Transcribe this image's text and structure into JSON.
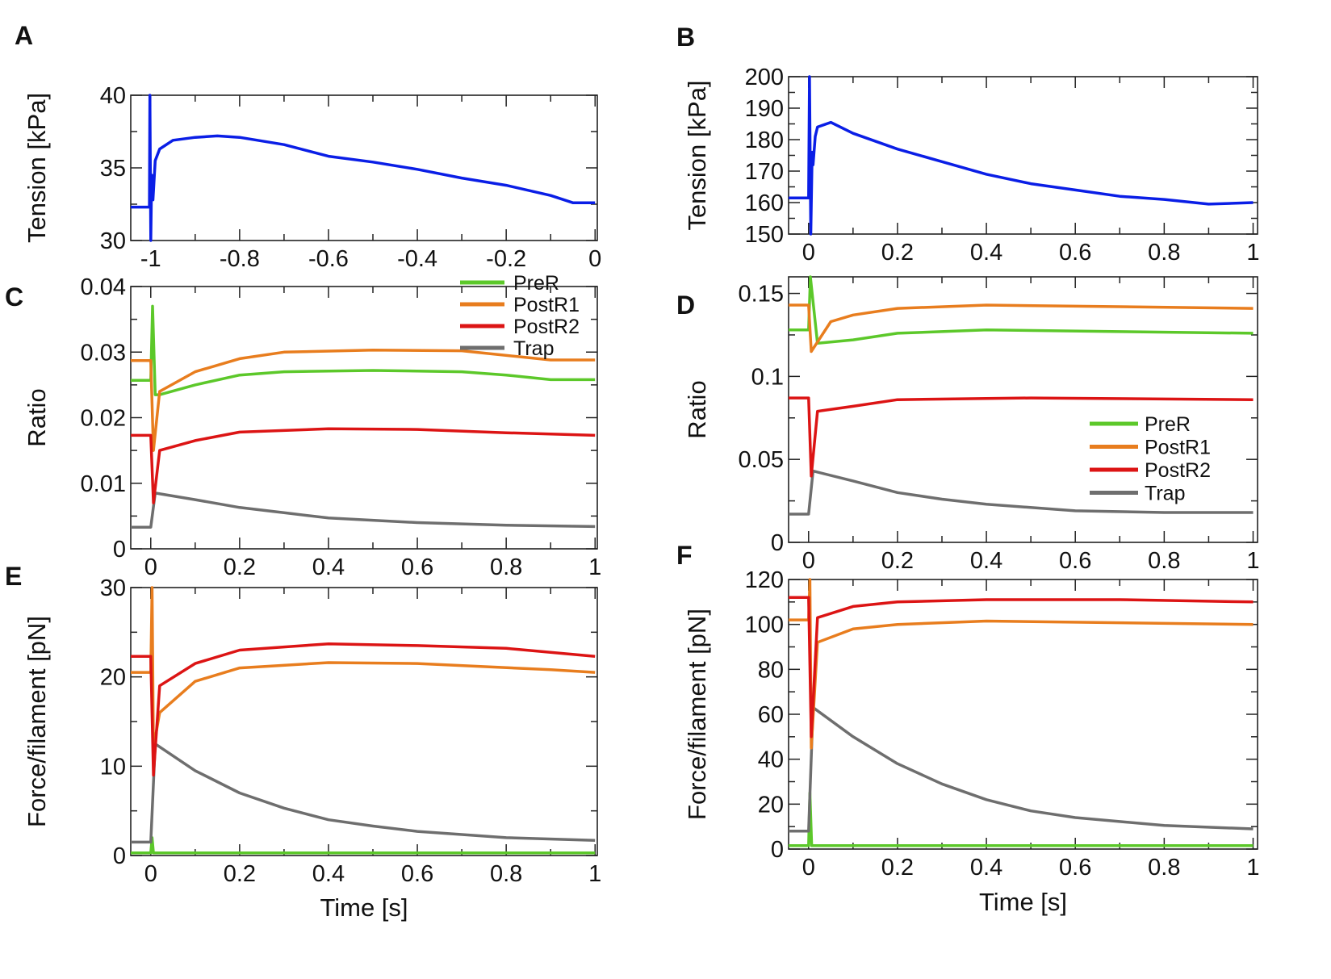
{
  "chart_data": [
    {
      "panel": "A",
      "type": "line",
      "ylabel": "Tension [kPa]",
      "xlabel": "",
      "xlim": [
        -1.045,
        0.005
      ],
      "ylim": [
        30,
        40
      ],
      "xticks": [
        "-1",
        "-0.8",
        "-0.6",
        "-0.4",
        "-0.2",
        "0"
      ],
      "xtick_values": [
        -1,
        -0.8,
        -0.6,
        -0.4,
        -0.2,
        0
      ],
      "yticks": [
        "30",
        "35",
        "40"
      ],
      "ytick_values": [
        30,
        35,
        40
      ],
      "legend": null,
      "series": [
        {
          "name": "Tension",
          "color": "#0a1ee6",
          "x": [
            -1.045,
            -1.003,
            -1.002,
            -1.0,
            -0.998,
            -0.995,
            -0.99,
            -0.98,
            -0.95,
            -0.9,
            -0.85,
            -0.8,
            -0.7,
            -0.6,
            -0.5,
            -0.4,
            -0.3,
            -0.2,
            -0.1,
            -0.05,
            0.0
          ],
          "y": [
            32.3,
            32.3,
            40,
            30,
            34.5,
            32.8,
            35.5,
            36.3,
            36.9,
            37.1,
            37.2,
            37.1,
            36.6,
            35.8,
            35.4,
            34.9,
            34.3,
            33.8,
            33.1,
            32.6,
            32.6
          ]
        }
      ]
    },
    {
      "panel": "B",
      "type": "line",
      "ylabel": "Tension [kPa]",
      "xlabel": "",
      "xlim": [
        -0.045,
        1.01
      ],
      "ylim": [
        150,
        200
      ],
      "xticks": [
        "0",
        "0.2",
        "0.4",
        "0.6",
        "0.8",
        "1"
      ],
      "xtick_values": [
        0,
        0.2,
        0.4,
        0.6,
        0.8,
        1
      ],
      "yticks": [
        "150",
        "160",
        "170",
        "180",
        "190",
        "200"
      ],
      "ytick_values": [
        150,
        160,
        170,
        180,
        190,
        200
      ],
      "legend": null,
      "series": [
        {
          "name": "Tension",
          "color": "#0a1ee6",
          "x": [
            -0.045,
            0.0,
            0.002,
            0.005,
            0.008,
            0.01,
            0.015,
            0.02,
            0.05,
            0.1,
            0.2,
            0.3,
            0.4,
            0.5,
            0.6,
            0.7,
            0.8,
            0.9,
            1.0
          ],
          "y": [
            161.5,
            161.5,
            200,
            150,
            176,
            172,
            181,
            184,
            185.5,
            182,
            177,
            173,
            169,
            166,
            164,
            162,
            161,
            159.5,
            160
          ]
        }
      ]
    },
    {
      "panel": "C",
      "type": "line",
      "ylabel": "Ratio",
      "xlabel": "",
      "xlim": [
        -0.045,
        1.005
      ],
      "ylim": [
        0,
        0.04
      ],
      "xticks": [
        "0",
        "0.2",
        "0.4",
        "0.6",
        "0.8",
        "1"
      ],
      "xtick_values": [
        0,
        0.2,
        0.4,
        0.6,
        0.8,
        1
      ],
      "yticks": [
        "0",
        "0.01",
        "0.02",
        "0.03",
        "0.04"
      ],
      "ytick_values": [
        0,
        0.01,
        0.02,
        0.03,
        0.04
      ],
      "legend": {
        "placement": "top-right",
        "entries": [
          "PreR",
          "PostR1",
          "PostR2",
          "Trap"
        ]
      },
      "series": [
        {
          "name": "Trap",
          "color": "#6e6e6e",
          "x": [
            -0.045,
            0.0,
            0.01,
            0.1,
            0.2,
            0.3,
            0.4,
            0.6,
            0.8,
            1.0
          ],
          "y": [
            0.0033,
            0.0033,
            0.0085,
            0.0075,
            0.0063,
            0.0055,
            0.0047,
            0.004,
            0.0036,
            0.0034
          ]
        },
        {
          "name": "PreR",
          "color": "#5cc82a",
          "x": [
            -0.045,
            0.0,
            0.004,
            0.01,
            0.02,
            0.1,
            0.2,
            0.3,
            0.5,
            0.7,
            0.8,
            0.9,
            1.0
          ],
          "y": [
            0.0257,
            0.0257,
            0.037,
            0.0235,
            0.0235,
            0.025,
            0.0265,
            0.027,
            0.0272,
            0.027,
            0.0265,
            0.0258,
            0.0258
          ]
        },
        {
          "name": "PostR1",
          "color": "#e87d1e",
          "x": [
            -0.045,
            0.0,
            0.006,
            0.02,
            0.1,
            0.2,
            0.3,
            0.5,
            0.7,
            0.9,
            1.0
          ],
          "y": [
            0.0287,
            0.0287,
            0.015,
            0.024,
            0.027,
            0.029,
            0.03,
            0.0303,
            0.0302,
            0.0288,
            0.0288
          ]
        },
        {
          "name": "PostR2",
          "color": "#dc1414",
          "x": [
            -0.045,
            0.0,
            0.006,
            0.02,
            0.1,
            0.2,
            0.4,
            0.6,
            0.8,
            1.0
          ],
          "y": [
            0.0173,
            0.0173,
            0.007,
            0.015,
            0.0165,
            0.0178,
            0.0183,
            0.0182,
            0.0177,
            0.0173
          ]
        }
      ]
    },
    {
      "panel": "D",
      "type": "line",
      "ylabel": "Ratio",
      "xlabel": "",
      "xlim": [
        -0.045,
        1.01
      ],
      "ylim": [
        0,
        0.16
      ],
      "xticks": [
        "0",
        "0.2",
        "0.4",
        "0.6",
        "0.8",
        "1"
      ],
      "xtick_values": [
        0,
        0.2,
        0.4,
        0.6,
        0.8,
        1
      ],
      "yticks": [
        "0",
        "0.05",
        "0.1",
        "0.15"
      ],
      "ytick_values": [
        0,
        0.05,
        0.1,
        0.15
      ],
      "legend": {
        "placement": "lower-right",
        "entries": [
          "PreR",
          "PostR1",
          "PostR2",
          "Trap"
        ]
      },
      "series": [
        {
          "name": "Trap",
          "color": "#6e6e6e",
          "x": [
            -0.045,
            0.0,
            0.01,
            0.1,
            0.2,
            0.3,
            0.4,
            0.6,
            0.8,
            1.0
          ],
          "y": [
            0.017,
            0.017,
            0.043,
            0.037,
            0.03,
            0.026,
            0.023,
            0.019,
            0.018,
            0.018
          ]
        },
        {
          "name": "PreR",
          "color": "#5cc82a",
          "x": [
            -0.045,
            0.0,
            0.004,
            0.02,
            0.1,
            0.2,
            0.4,
            0.7,
            1.0
          ],
          "y": [
            0.128,
            0.128,
            0.16,
            0.12,
            0.122,
            0.126,
            0.128,
            0.127,
            0.126
          ]
        },
        {
          "name": "PostR1",
          "color": "#e87d1e",
          "x": [
            -0.045,
            0.0,
            0.006,
            0.05,
            0.1,
            0.2,
            0.4,
            0.7,
            1.0
          ],
          "y": [
            0.143,
            0.143,
            0.115,
            0.133,
            0.137,
            0.141,
            0.143,
            0.142,
            0.141
          ]
        },
        {
          "name": "PostR2",
          "color": "#dc1414",
          "x": [
            -0.045,
            0.0,
            0.006,
            0.02,
            0.1,
            0.2,
            0.5,
            1.0
          ],
          "y": [
            0.087,
            0.087,
            0.04,
            0.079,
            0.082,
            0.086,
            0.087,
            0.086
          ]
        }
      ]
    },
    {
      "panel": "E",
      "type": "line",
      "ylabel": "Force/filament [pN]",
      "xlabel": "Time  [s]",
      "xlim": [
        -0.045,
        1.005
      ],
      "ylim": [
        0,
        30
      ],
      "xticks": [
        "0",
        "0.2",
        "0.4",
        "0.6",
        "0.8",
        "1"
      ],
      "xtick_values": [
        0,
        0.2,
        0.4,
        0.6,
        0.8,
        1
      ],
      "yticks": [
        "0",
        "10",
        "20",
        "30"
      ],
      "ytick_values": [
        0,
        10,
        20,
        30
      ],
      "legend": null,
      "series": [
        {
          "name": "PreR",
          "color": "#5cc82a",
          "x": [
            -0.045,
            0.0,
            0.003,
            0.006,
            1.0
          ],
          "y": [
            0.3,
            0.3,
            2,
            0.3,
            0.3
          ]
        },
        {
          "name": "Trap",
          "color": "#6e6e6e",
          "x": [
            -0.045,
            0.0,
            0.01,
            0.1,
            0.2,
            0.3,
            0.4,
            0.5,
            0.6,
            0.8,
            1.0
          ],
          "y": [
            1.5,
            1.5,
            12.5,
            9.5,
            7,
            5.3,
            4,
            3.3,
            2.7,
            2,
            1.7
          ]
        },
        {
          "name": "PostR1",
          "color": "#e87d1e",
          "x": [
            -0.045,
            0.0,
            0.003,
            0.006,
            0.02,
            0.1,
            0.2,
            0.4,
            0.6,
            0.9,
            1.0
          ],
          "y": [
            20.5,
            20.5,
            30,
            12,
            16,
            19.5,
            21,
            21.6,
            21.5,
            20.8,
            20.5
          ]
        },
        {
          "name": "PostR2",
          "color": "#dc1414",
          "x": [
            -0.045,
            0.0,
            0.006,
            0.02,
            0.1,
            0.2,
            0.4,
            0.6,
            0.8,
            1.0
          ],
          "y": [
            22.3,
            22.3,
            9,
            19,
            21.5,
            23,
            23.7,
            23.5,
            23.2,
            22.3
          ]
        }
      ]
    },
    {
      "panel": "F",
      "type": "line",
      "ylabel": "Force/filament [pN]",
      "xlabel": "Time  [s]",
      "xlim": [
        -0.045,
        1.01
      ],
      "ylim": [
        0,
        120
      ],
      "xticks": [
        "0",
        "0.2",
        "0.4",
        "0.6",
        "0.8",
        "1"
      ],
      "xtick_values": [
        0,
        0.2,
        0.4,
        0.6,
        0.8,
        1
      ],
      "yticks": [
        "0",
        "20",
        "40",
        "60",
        "80",
        "100",
        "120"
      ],
      "ytick_values": [
        0,
        20,
        40,
        60,
        80,
        100,
        120
      ],
      "legend": null,
      "series": [
        {
          "name": "PreR",
          "color": "#5cc82a",
          "x": [
            -0.045,
            0.0,
            0.003,
            0.007,
            1.0
          ],
          "y": [
            1.5,
            1.5,
            25,
            1.5,
            1.5
          ]
        },
        {
          "name": "Trap",
          "color": "#6e6e6e",
          "x": [
            -0.045,
            0.0,
            0.01,
            0.1,
            0.2,
            0.3,
            0.4,
            0.5,
            0.6,
            0.8,
            1.0
          ],
          "y": [
            8,
            8,
            63,
            50,
            38,
            29,
            22,
            17,
            14,
            10.5,
            9
          ]
        },
        {
          "name": "PostR1",
          "color": "#e87d1e",
          "x": [
            -0.045,
            0.0,
            0.003,
            0.006,
            0.02,
            0.1,
            0.2,
            0.4,
            1.0
          ],
          "y": [
            102,
            102,
            120,
            45,
            92,
            98,
            100,
            101.5,
            100
          ]
        },
        {
          "name": "PostR2",
          "color": "#dc1414",
          "x": [
            -0.045,
            0.0,
            0.006,
            0.02,
            0.1,
            0.2,
            0.4,
            0.7,
            1.0
          ],
          "y": [
            112,
            112,
            50,
            103,
            108,
            110,
            111,
            111,
            110
          ]
        }
      ]
    }
  ]
}
